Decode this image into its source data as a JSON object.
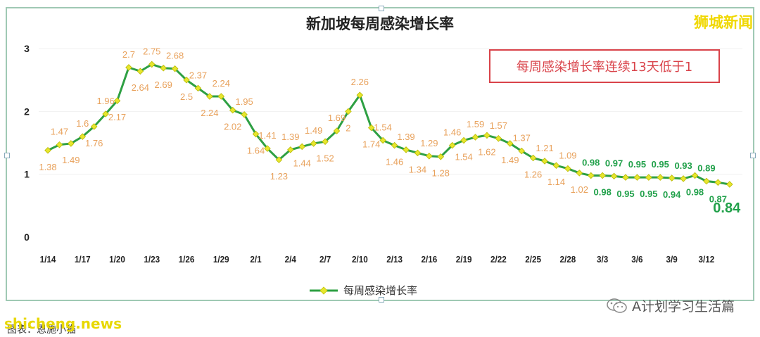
{
  "title": "新加坡每周感染增长率",
  "brand": "狮城新闻",
  "callout": "每周感染增长率连续13天低于1",
  "legend": "每周感染增长率",
  "footer": {
    "watermark": "shicheng.news",
    "source": "图表：恩施小猫",
    "account": "A计划学习生活篇"
  },
  "colors": {
    "line": "#2ea043",
    "marker": "#e6e62e",
    "label_orange": "#e8a15b",
    "label_green": "#22a14b",
    "callout": "#d9434a",
    "brand": "#f0d800"
  },
  "chart_data": {
    "type": "line",
    "title": "新加坡每周感染增长率",
    "ylim": [
      0,
      3
    ],
    "yticks": [
      "0",
      "1",
      "2",
      "3"
    ],
    "xticks": [
      "1/14",
      "1/17",
      "1/20",
      "1/23",
      "1/26",
      "1/29",
      "2/1",
      "2/4",
      "2/7",
      "2/10",
      "2/13",
      "2/16",
      "2/19",
      "2/22",
      "2/25",
      "2/28",
      "3/3",
      "3/6",
      "3/9",
      "3/12"
    ],
    "series": [
      {
        "name": "每周感染增长率",
        "values": [
          1.38,
          1.47,
          1.49,
          1.6,
          1.76,
          1.96,
          2.17,
          2.7,
          2.64,
          2.75,
          2.69,
          2.68,
          2.5,
          2.37,
          2.24,
          2.24,
          2.02,
          1.95,
          1.64,
          1.41,
          1.23,
          1.39,
          1.44,
          1.49,
          1.52,
          1.69,
          2,
          2.26,
          1.74,
          1.54,
          1.46,
          1.39,
          1.34,
          1.29,
          1.28,
          1.46,
          1.54,
          1.59,
          1.62,
          1.57,
          1.49,
          1.37,
          1.26,
          1.21,
          1.14,
          1.09,
          1.02,
          0.98,
          0.98,
          0.97,
          0.95,
          0.95,
          0.95,
          0.95,
          0.94,
          0.93,
          0.98,
          0.89,
          0.87,
          0.84
        ]
      }
    ]
  }
}
